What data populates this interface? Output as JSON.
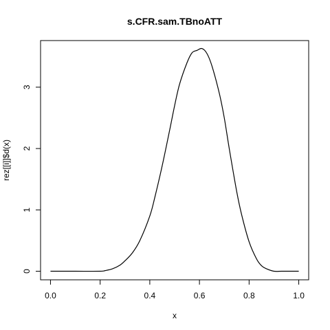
{
  "chart_data": {
    "type": "line",
    "title": "s.CFR.sam.TBnoATT",
    "xlabel": "x",
    "ylabel": "rez[[i]]$d(x)",
    "xlim": [
      -0.04,
      1.04
    ],
    "ylim": [
      -0.14,
      3.76
    ],
    "grid": false,
    "legend": "none",
    "x_ticks": [
      0.0,
      0.2,
      0.4,
      0.6,
      0.8,
      1.0
    ],
    "x_tick_labels": [
      "0.0",
      "0.2",
      "0.4",
      "0.6",
      "0.8",
      "1.0"
    ],
    "y_ticks": [
      0,
      1,
      2,
      3
    ],
    "y_tick_labels": [
      "0",
      "1",
      "2",
      "3"
    ],
    "line_color": "#000000",
    "series": [
      {
        "x": [
          0.0,
          0.1,
          0.2,
          0.22,
          0.25,
          0.28,
          0.3,
          0.33,
          0.36,
          0.4,
          0.42,
          0.45,
          0.48,
          0.5,
          0.52,
          0.55,
          0.57,
          0.59,
          0.61,
          0.63,
          0.65,
          0.68,
          0.7,
          0.72,
          0.75,
          0.77,
          0.8,
          0.83,
          0.85,
          0.87,
          0.9,
          0.93,
          0.96,
          1.0
        ],
        "y": [
          0.0,
          0.0,
          0.0,
          0.01,
          0.04,
          0.1,
          0.17,
          0.3,
          0.5,
          0.9,
          1.2,
          1.72,
          2.3,
          2.7,
          3.05,
          3.4,
          3.56,
          3.6,
          3.63,
          3.55,
          3.35,
          2.9,
          2.5,
          2.0,
          1.3,
          0.92,
          0.48,
          0.2,
          0.09,
          0.04,
          0.0,
          0.0,
          0.0,
          0.0
        ]
      }
    ]
  }
}
